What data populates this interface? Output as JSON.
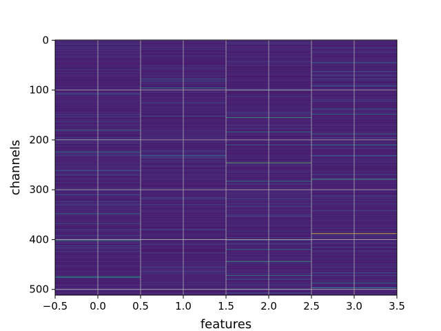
{
  "chart_data": {
    "type": "heatmap",
    "title": "",
    "xlabel": "features",
    "ylabel": "channels",
    "xlim": [
      -0.5,
      3.5
    ],
    "ylim": [
      511.5,
      -0.5
    ],
    "y_axis_inverted": true,
    "grid": true,
    "colormap": "viridis",
    "rows": 512,
    "columns": 4,
    "x_ticks": [
      -0.5,
      0.0,
      0.5,
      1.0,
      1.5,
      2.0,
      2.5,
      3.0,
      3.5
    ],
    "x_tick_labels": [
      "−0.5",
      "0.0",
      "0.5",
      "1.0",
      "1.5",
      "2.0",
      "2.5",
      "3.0",
      "3.5"
    ],
    "y_ticks": [
      0,
      100,
      200,
      300,
      400,
      500
    ],
    "y_tick_labels": [
      "0",
      "100",
      "200",
      "300",
      "400",
      "500"
    ],
    "value_range": [
      0,
      1
    ],
    "background_value": 0.06,
    "highlights": [
      {
        "column": 0,
        "rows": [
          [
            180,
            0.4
          ],
          [
            224,
            0.5
          ],
          [
            262,
            0.28
          ],
          [
            310,
            0.3
          ],
          [
            348,
            0.45
          ],
          [
            368,
            0.3
          ],
          [
            402,
            0.55
          ],
          [
            474,
            0.55
          ],
          [
            476,
            0.5
          ],
          [
            108,
            0.25
          ],
          [
            195,
            0.2
          ]
        ]
      },
      {
        "column": 1,
        "rows": [
          [
            78,
            0.35
          ],
          [
            82,
            0.3
          ],
          [
            96,
            0.55
          ],
          [
            152,
            0.3
          ],
          [
            232,
            0.35
          ],
          [
            236,
            0.3
          ],
          [
            330,
            0.25
          ],
          [
            380,
            0.22
          ],
          [
            456,
            0.25
          ]
        ]
      },
      {
        "column": 2,
        "rows": [
          [
            155,
            0.65
          ],
          [
            184,
            0.45
          ],
          [
            210,
            0.3
          ],
          [
            246,
            0.75
          ],
          [
            283,
            0.5
          ],
          [
            318,
            0.25
          ],
          [
            334,
            0.25
          ],
          [
            401,
            0.3
          ],
          [
            420,
            0.45
          ],
          [
            444,
            0.6
          ],
          [
            472,
            0.4
          ],
          [
            480,
            0.28
          ]
        ]
      },
      {
        "column": 3,
        "rows": [
          [
            16,
            0.25
          ],
          [
            45,
            0.4
          ],
          [
            92,
            0.3
          ],
          [
            138,
            0.35
          ],
          [
            148,
            0.45
          ],
          [
            188,
            0.4
          ],
          [
            210,
            0.5
          ],
          [
            232,
            0.3
          ],
          [
            279,
            0.65
          ],
          [
            388,
            0.95
          ],
          [
            415,
            0.3
          ],
          [
            487,
            0.45
          ],
          [
            497,
            0.5
          ]
        ]
      }
    ]
  }
}
